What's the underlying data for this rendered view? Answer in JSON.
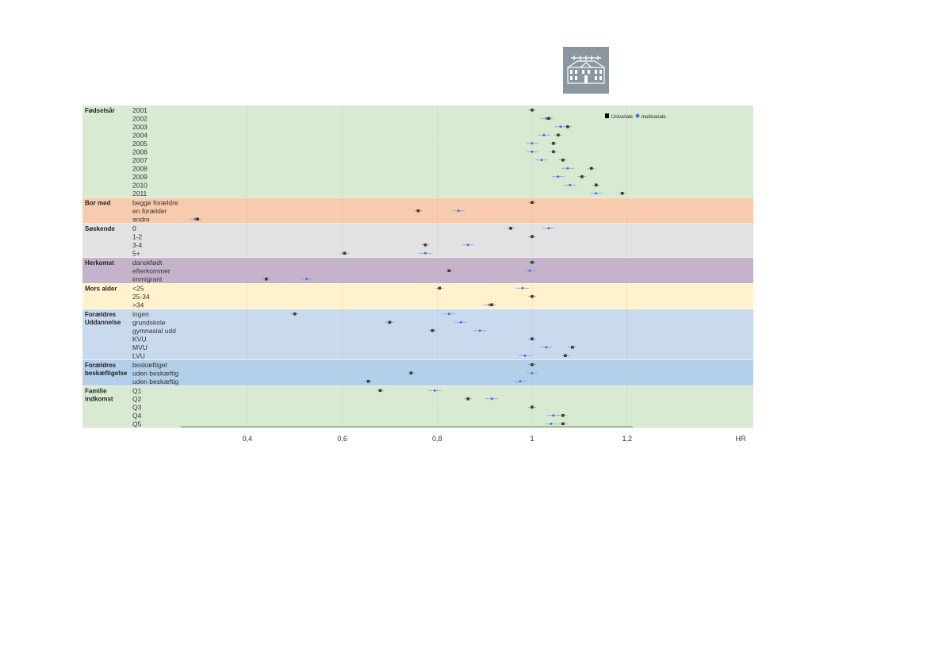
{
  "logo": {
    "icon": "building-icon",
    "background": "#8a96a0"
  },
  "legend": {
    "univariate_label": "Univariate",
    "multivariate_label": "multivariate"
  },
  "axis": {
    "xlabel": "HR",
    "ticks": [
      "0,4",
      "0,6",
      "0,8",
      "1",
      "1,2"
    ],
    "tick_values": [
      0.4,
      0.6,
      0.8,
      1.0,
      1.2
    ]
  },
  "chart_data": {
    "type": "forest",
    "xlabel": "HR",
    "xlim": [
      0.2,
      1.5
    ],
    "reference_line": 1.0,
    "series": [
      {
        "name": "Univariate",
        "color": "#3c3c3c",
        "marker": "square"
      },
      {
        "name": "multivariate",
        "color": "#4a6fd6",
        "marker": "circle"
      }
    ],
    "groups": [
      {
        "label": [
          "Fødselsår"
        ],
        "color": "#d9ead3",
        "rows": [
          {
            "label": "2001",
            "uni": 1.0,
            "multi": null
          },
          {
            "label": "2002",
            "uni": 1.035,
            "multi": 1.03
          },
          {
            "label": "2003",
            "uni": 1.075,
            "multi": 1.06
          },
          {
            "label": "2004",
            "uni": 1.055,
            "multi": 1.025
          },
          {
            "label": "2005",
            "uni": 1.045,
            "multi": 1.0
          },
          {
            "label": "2006",
            "uni": 1.045,
            "multi": 1.0
          },
          {
            "label": "2007",
            "uni": 1.065,
            "multi": 1.02
          },
          {
            "label": "2008",
            "uni": 1.125,
            "multi": 1.075
          },
          {
            "label": "2009",
            "uni": 1.105,
            "multi": 1.055
          },
          {
            "label": "2010",
            "uni": 1.135,
            "multi": 1.08
          },
          {
            "label": "2011",
            "uni": 1.19,
            "multi": 1.135
          }
        ]
      },
      {
        "label": [
          "Bor med"
        ],
        "color": "#f8cbad",
        "rows": [
          {
            "label": "begge forældre",
            "uni": 1.0,
            "multi": null
          },
          {
            "label": "en forælder",
            "uni": 0.76,
            "multi": 0.845
          },
          {
            "label": "andre",
            "uni": 0.295,
            "multi": 0.29
          }
        ]
      },
      {
        "label": [
          "Søskende"
        ],
        "color": "#e2e2e2",
        "rows": [
          {
            "label": "0",
            "uni": 0.955,
            "multi": 1.035
          },
          {
            "label": "1-2",
            "uni": 1.0,
            "multi": null
          },
          {
            "label": "3-4",
            "uni": 0.775,
            "multi": 0.865
          },
          {
            "label": "5+",
            "uni": 0.605,
            "multi": 0.775
          }
        ]
      },
      {
        "label": [
          "Herkomst"
        ],
        "color": "#c4b3cb",
        "rows": [
          {
            "label": "danskfødt",
            "uni": 1.0,
            "multi": null
          },
          {
            "label": "efterkommer",
            "uni": 0.825,
            "multi": 0.995
          },
          {
            "label": "immigrant",
            "uni": 0.44,
            "multi": 0.525
          }
        ]
      },
      {
        "label": [
          "Mors alder"
        ],
        "color": "#fff2cc",
        "rows": [
          {
            "label": "<25",
            "uni": 0.805,
            "multi": 0.98
          },
          {
            "label": "25-34",
            "uni": 1.0,
            "multi": null
          },
          {
            "label": ">34",
            "uni": 0.915,
            "multi": 0.91
          }
        ]
      },
      {
        "label": [
          "Forældres",
          "Uddannelse"
        ],
        "color": "#c9d9ee",
        "rows": [
          {
            "label": "ingen",
            "uni": 0.5,
            "multi": 0.825
          },
          {
            "label": "grundskole",
            "uni": 0.7,
            "multi": 0.85
          },
          {
            "label": "gymnasial udd",
            "uni": 0.79,
            "multi": 0.89
          },
          {
            "label": "KVU",
            "uni": 1.0,
            "multi": null
          },
          {
            "label": "MVU",
            "uni": 1.085,
            "multi": 1.03
          },
          {
            "label": "LVU",
            "uni": 1.07,
            "multi": 0.985
          }
        ]
      },
      {
        "label": [
          "Forældres",
          "beskæftigelse"
        ],
        "color": "#b4cfe9",
        "rows": [
          {
            "label": "beskæftiget",
            "uni": 1.0,
            "multi": null
          },
          {
            "label": "uden beskæftig",
            "uni": 0.745,
            "multi": 1.0
          },
          {
            "label": "uden beskæftig",
            "uni": 0.655,
            "multi": 0.975
          }
        ]
      },
      {
        "label": [
          "Familie",
          "indkomst"
        ],
        "color": "#d9ead3",
        "rows": [
          {
            "label": "Q1",
            "uni": 0.68,
            "multi": 0.795
          },
          {
            "label": "Q2",
            "uni": 0.865,
            "multi": 0.915
          },
          {
            "label": "Q3",
            "uni": 1.0,
            "multi": null
          },
          {
            "label": "Q4",
            "uni": 1.065,
            "multi": 1.045
          },
          {
            "label": "Q5",
            "uni": 1.065,
            "multi": 1.04
          }
        ]
      }
    ]
  }
}
